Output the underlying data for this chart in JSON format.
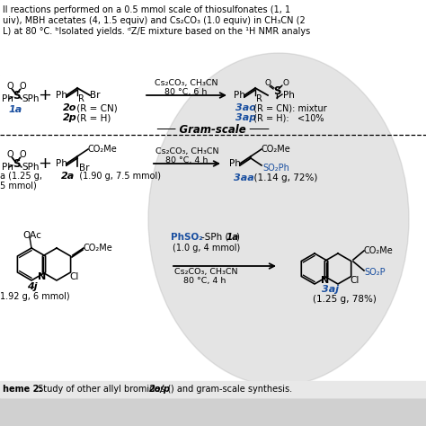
{
  "bg_color": "#d0d0d0",
  "white_panel_color": "#ffffff",
  "blue_color": "#1a4fa0",
  "black_color": "#000000",
  "gray_ellipse_color": "#a8a8a8",
  "header_lines": [
    "ll reactions performed on a 0.5 mmol scale of thiosulfonates (1, 1",
    "uiv), MBH acetates (4, 1.5 equiv) and Cs₂CO₃ (1.0 equiv) in CH₃CN (2",
    "L) at 80 °C. ᵇIsolated yields. ᵈZ/E mixture based on the ¹H NMR analys"
  ],
  "footer_bold": "heme 2:",
  "footer_normal": " Study of other allyl bromides (",
  "footer_bold2": "2o/p",
  "footer_normal2": ") and gram-scale synthesis.",
  "r1_conditions1": "Cs₂CO₃, CH₃CN",
  "r1_conditions2": "80 °C, 6 h",
  "r1_label_1a": "1a",
  "r1_label_2o": "2o",
  "r1_label_2o_r": " (R = CN)",
  "r1_label_2p": "2p",
  "r1_label_2p_r": " (R = H)",
  "r1_label_3ao": "3ao",
  "r1_label_3ao_r": " (R = CN): mixtur",
  "r1_label_3ap": "3ap",
  "r1_label_3ap_r": " (R = H):   <10%",
  "gram_scale": "Gram-scale",
  "r2_conditions1": "Cs₂CO₃, CH₃CN",
  "r2_conditions2": "80 °C, 4 h",
  "r2_label_1a1": "a (1.25 g,",
  "r2_label_1a2": "5 mmol)",
  "r2_label_2a": "2a",
  "r2_label_2a2": "(1.90 g, 7.5 mmol)",
  "r2_label_3aa": "3aa",
  "r2_label_3aa2": "(1.14 g, 72%)",
  "r3_reagent1_blue": "PhSO₂",
  "r3_reagent1_black": "-SPh (",
  "r3_reagent1_bold": "1a",
  "r3_reagent1_bold2": ")",
  "r3_reagent2": "(1.0 g, 4 mmol)",
  "r3_conditions1": "Cs₂CO₃, CH₃CN",
  "r3_conditions2": "80 °C, 4 h",
  "r3_label_4j": "4j",
  "r3_label_4j2": "1.92 g, 6 mmol)",
  "r3_label_3aj": "3aj",
  "r3_label_3aj2": "(1.25 g, 78%)"
}
